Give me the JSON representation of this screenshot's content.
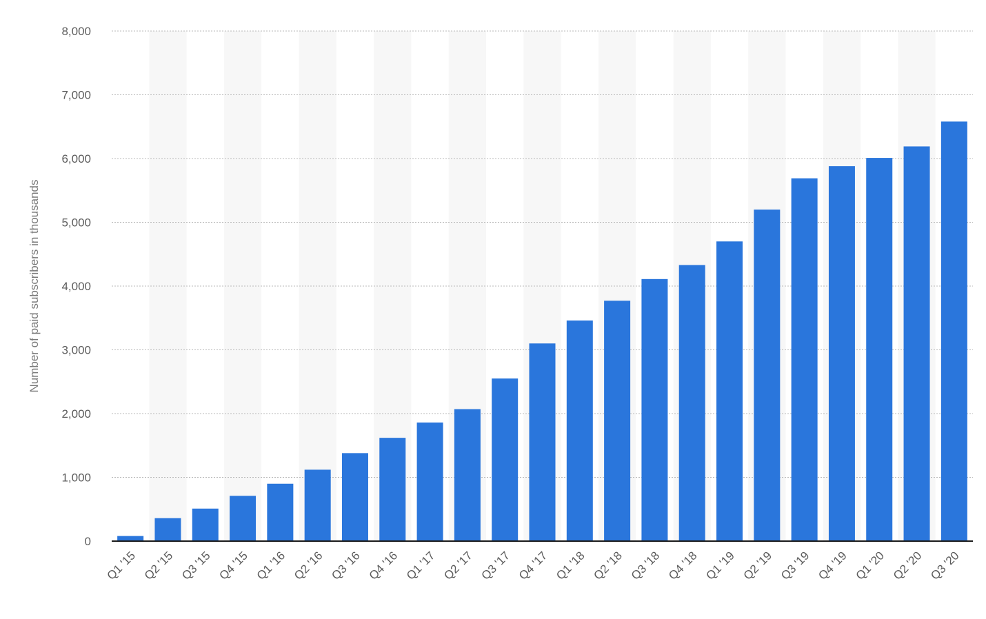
{
  "chart_data": {
    "type": "bar",
    "title": "",
    "xlabel": "",
    "ylabel": "Number of paid subscribers in thousands",
    "ylim": [
      0,
      8000
    ],
    "yticks": [
      0,
      1000,
      2000,
      3000,
      4000,
      5000,
      6000,
      7000,
      8000
    ],
    "ytick_labels": [
      "0",
      "1,000",
      "2,000",
      "3,000",
      "4,000",
      "5,000",
      "6,000",
      "7,000",
      "8,000"
    ],
    "grid": true,
    "bar_color": "#2a76dc",
    "categories": [
      "Q1 '15",
      "Q2 '15",
      "Q3 '15",
      "Q4 '15",
      "Q1 '16",
      "Q2 '16",
      "Q3 '16",
      "Q4 '16",
      "Q1 '17",
      "Q2 '17",
      "Q3 '17",
      "Q4 '17",
      "Q1 '18",
      "Q2 '18",
      "Q3 '18",
      "Q4 '18",
      "Q1 '19",
      "Q2 '19",
      "Q3 '19",
      "Q4 '19",
      "Q1 '20",
      "Q2 '20",
      "Q3 '20"
    ],
    "values": [
      80,
      360,
      510,
      710,
      900,
      1120,
      1380,
      1620,
      1860,
      2070,
      2550,
      3100,
      3460,
      3770,
      4110,
      4330,
      4700,
      5200,
      5690,
      5880,
      6010,
      6190,
      6580
    ]
  }
}
